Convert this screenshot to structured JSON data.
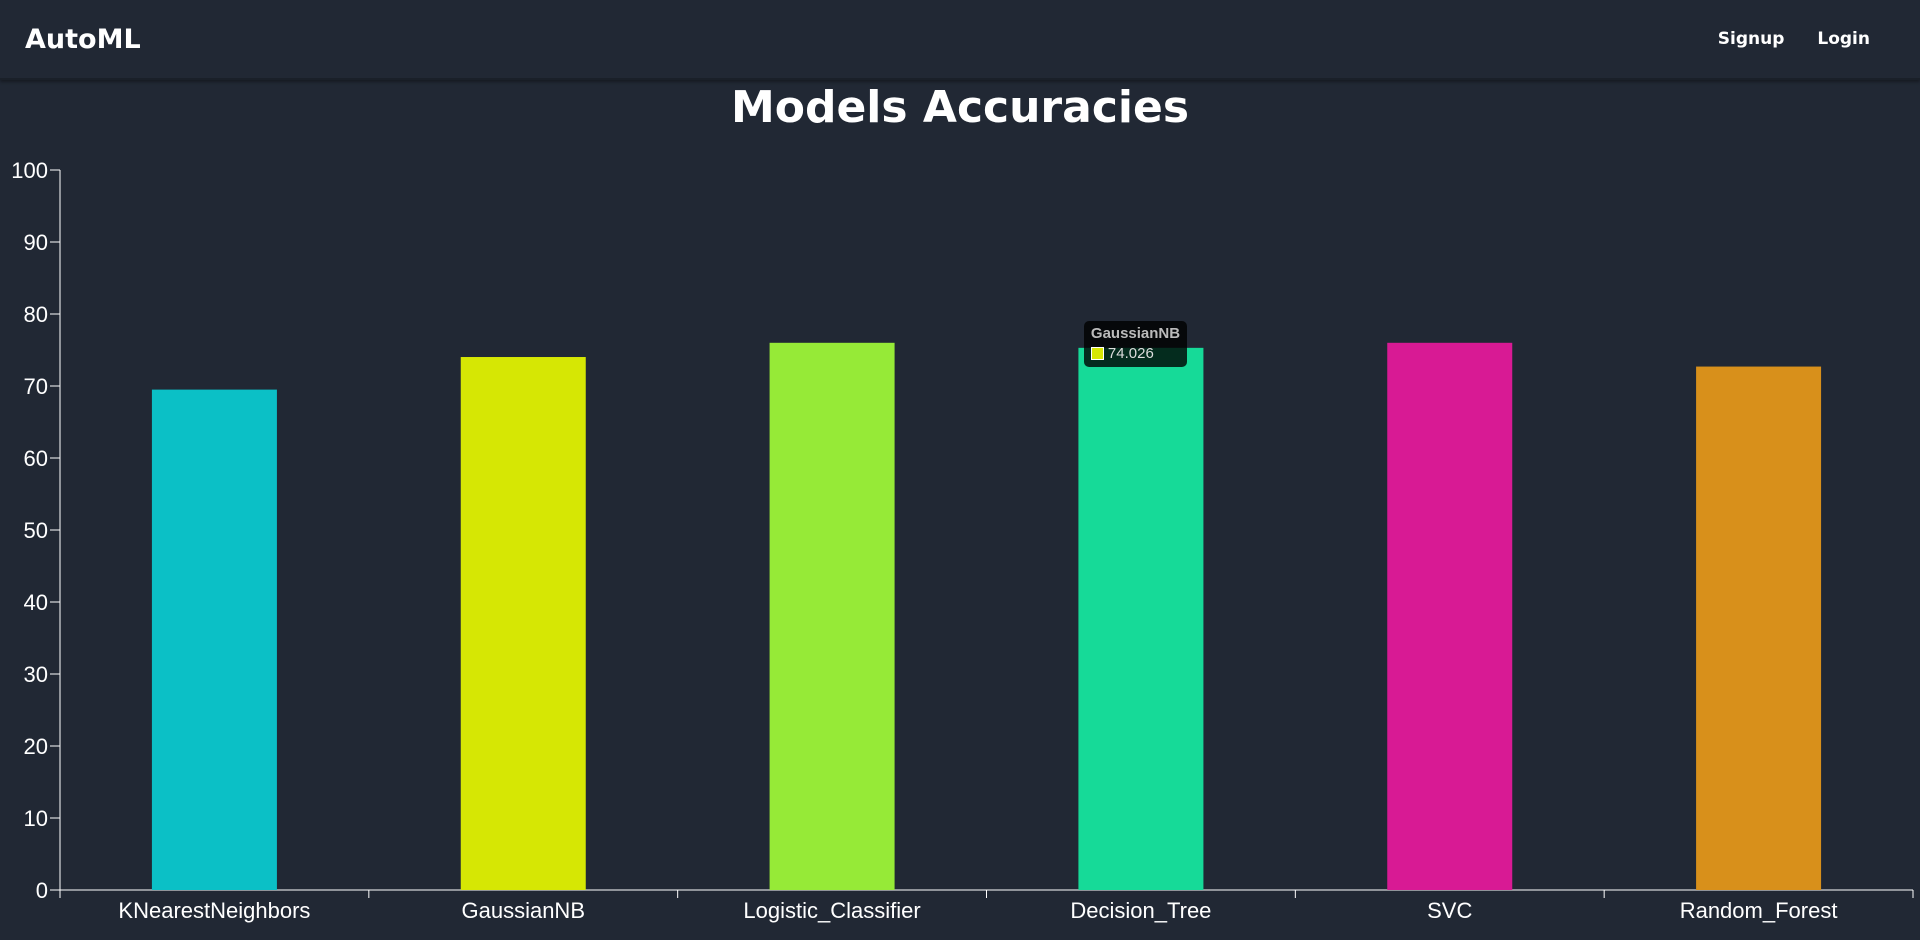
{
  "navbar": {
    "brand": "AutoML",
    "links": [
      {
        "label": "Signup"
      },
      {
        "label": "Login"
      }
    ]
  },
  "chart_data": {
    "type": "bar",
    "title": "Models Accuracies",
    "categories": [
      "KNearestNeighbors",
      "GaussianNB",
      "Logistic_Classifier",
      "Decision_Tree",
      "SVC",
      "Random_Forest"
    ],
    "values": [
      69.5,
      74.026,
      76.0,
      75.3,
      76.0,
      72.7
    ],
    "colors": [
      "#0bc0c6",
      "#d6e704",
      "#96ea37",
      "#16da98",
      "#d81a94",
      "#d8901b"
    ],
    "ylim": [
      0,
      100
    ],
    "yticks": [
      0,
      10,
      20,
      30,
      40,
      50,
      60,
      70,
      80,
      90,
      100
    ],
    "xlabel": "",
    "ylabel": "",
    "grid": false,
    "tooltip": {
      "category": "GaussianNB",
      "value": "74.026",
      "color": "#d6e704"
    }
  }
}
